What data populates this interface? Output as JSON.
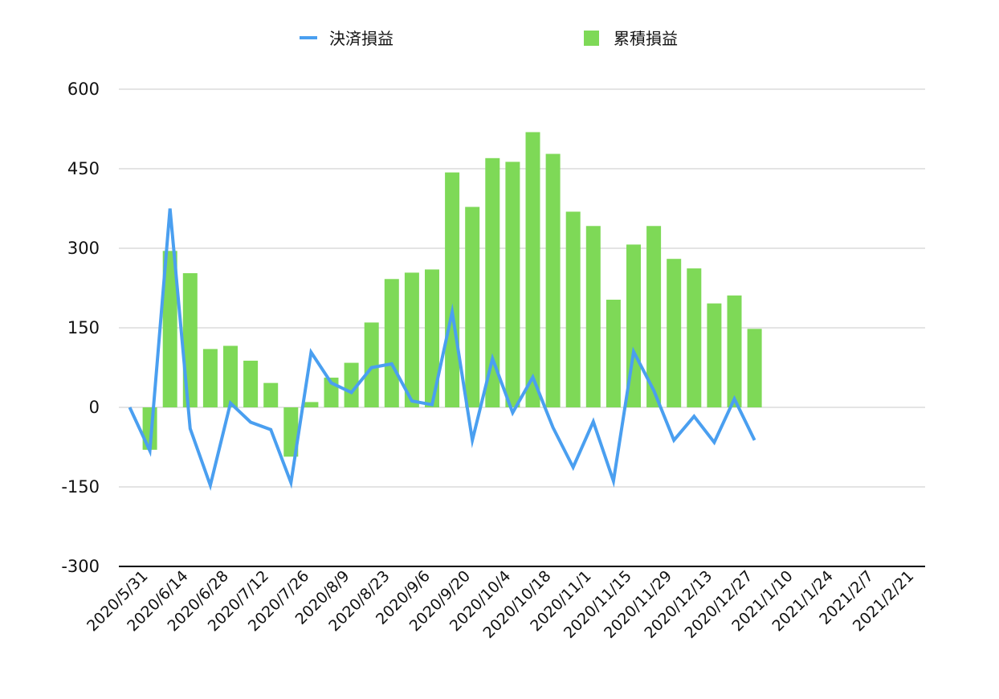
{
  "chart_data": {
    "type": "bar",
    "title": "",
    "xlabel": "",
    "ylabel": "",
    "ylim": [
      -300,
      600
    ],
    "yticks": [
      -300,
      -150,
      0,
      150,
      300,
      450,
      600
    ],
    "x_tick_labels": [
      "2020/5/31",
      "2020/6/14",
      "2020/6/28",
      "2020/7/12",
      "2020/7/26",
      "2020/8/9",
      "2020/8/23",
      "2020/9/6",
      "2020/9/20",
      "2020/10/4",
      "2020/10/18",
      "2020/11/1",
      "2020/11/15",
      "2020/11/29",
      "2020/12/13",
      "2020/12/27",
      "2021/1/10",
      "2021/1/24",
      "2021/2/7",
      "2021/2/21"
    ],
    "grid": true,
    "legend": {
      "position": "top"
    },
    "colors": {
      "line": "#4a9ff0",
      "bar": "#7ed957",
      "grid": "#c8c8c8",
      "axis": "#000000"
    },
    "series": [
      {
        "name": "累積損益",
        "type": "bar",
        "values": [
          0,
          -80,
          295,
          253,
          110,
          116,
          88,
          46,
          -93,
          10,
          56,
          84,
          160,
          242,
          254,
          260,
          443,
          378,
          470,
          463,
          519,
          478,
          369,
          342,
          203,
          307,
          342,
          280,
          262,
          196,
          211,
          148
        ]
      },
      {
        "name": "決済損益",
        "type": "line",
        "values": [
          0,
          -82,
          375,
          -40,
          -147,
          8,
          -28,
          -42,
          -142,
          104,
          46,
          28,
          75,
          82,
          12,
          5,
          180,
          -62,
          92,
          -10,
          57,
          -38,
          -113,
          -27,
          -139,
          105,
          32,
          -62,
          -17,
          -66,
          16,
          -62
        ]
      }
    ]
  }
}
